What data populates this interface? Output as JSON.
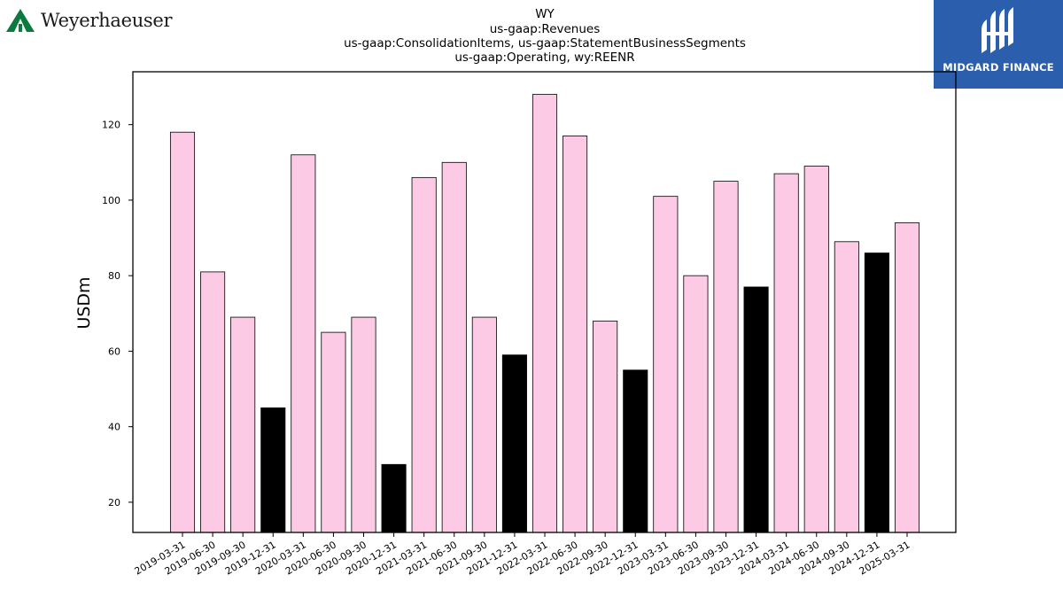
{
  "logos": {
    "left": {
      "name": "Weyerhaeuser",
      "color": "#0b7a3e"
    },
    "right": {
      "name": "MIDGARD FINANCE",
      "color": "#2b5fae"
    }
  },
  "chart_data": {
    "type": "bar",
    "title_lines": [
      "WY",
      "us-gaap:Revenues",
      "us-gaap:ConsolidationItems, us-gaap:StatementBusinessSegments",
      "us-gaap:Operating, wy:REENR"
    ],
    "xlabel": "",
    "ylabel": "USDm",
    "ylim": [
      12,
      134
    ],
    "yticks": [
      20,
      40,
      60,
      80,
      100,
      120
    ],
    "grid": false,
    "categories": [
      "2019-03-31",
      "2019-06-30",
      "2019-09-30",
      "2019-12-31",
      "2020-03-31",
      "2020-06-30",
      "2020-09-30",
      "2020-12-31",
      "2021-03-31",
      "2021-06-30",
      "2021-09-30",
      "2021-12-31",
      "2022-03-31",
      "2022-06-30",
      "2022-09-30",
      "2022-12-31",
      "2023-03-31",
      "2023-06-30",
      "2023-09-30",
      "2023-12-31",
      "2024-03-31",
      "2024-06-30",
      "2024-09-30",
      "2024-12-31",
      "2025-03-31"
    ],
    "values": [
      118,
      81,
      69,
      45,
      112,
      65,
      69,
      30,
      106,
      110,
      69,
      59,
      128,
      117,
      68,
      55,
      101,
      80,
      105,
      77,
      107,
      109,
      89,
      86,
      94
    ],
    "colors": {
      "quarter": "#fccae4",
      "year_end": "#000000",
      "edge": "#000000"
    }
  }
}
